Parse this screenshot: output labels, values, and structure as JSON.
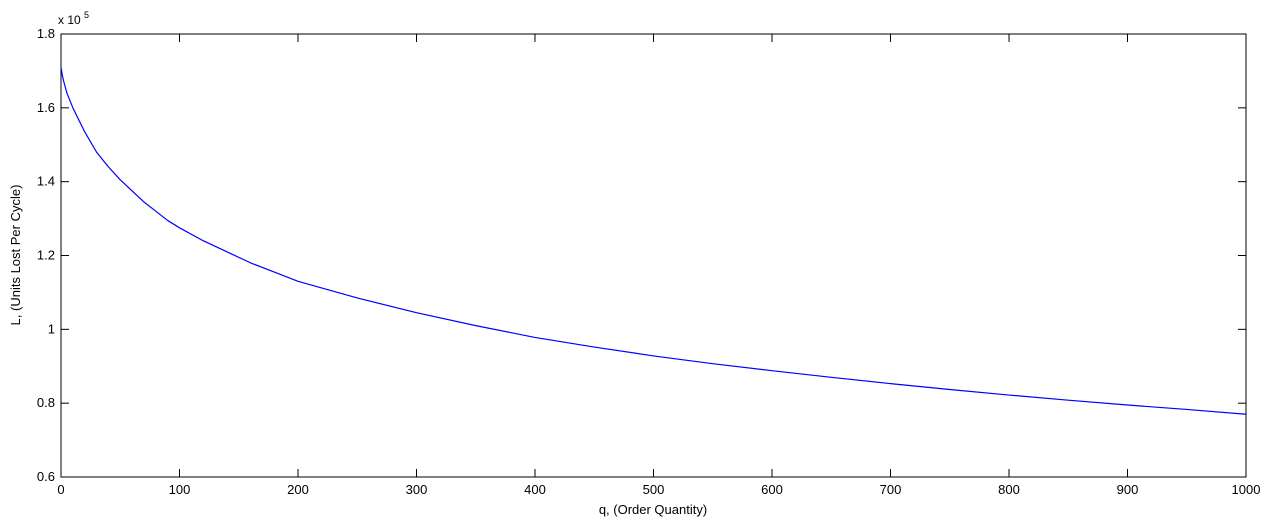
{
  "chart_data": {
    "type": "line",
    "title": "",
    "xlabel": "q, (Order Quantity)",
    "ylabel": "L, (Units Lost Per Cycle)",
    "y_exponent_prefix": "x 10",
    "y_exponent_power": "5",
    "xlim": [
      0,
      1000
    ],
    "ylim": [
      0.6,
      1.8
    ],
    "x_ticks": [
      0,
      100,
      200,
      300,
      400,
      500,
      600,
      700,
      800,
      900,
      1000
    ],
    "x_tick_labels": [
      "0",
      "100",
      "200",
      "300",
      "400",
      "500",
      "600",
      "700",
      "800",
      "900",
      "1000"
    ],
    "y_ticks": [
      0.6,
      0.8,
      1.0,
      1.2,
      1.4,
      1.6,
      1.8
    ],
    "y_tick_labels": [
      "0.6",
      "0.8",
      "1",
      "1.2",
      "1.4",
      "1.6",
      "1.8"
    ],
    "grid": false,
    "legend": "none",
    "line_color": "#0000ff",
    "series": [
      {
        "x": [
          0,
          1,
          2,
          5,
          10,
          20,
          30,
          40,
          50,
          60,
          70,
          80,
          90,
          100,
          120,
          140,
          160,
          180,
          200,
          250,
          300,
          350,
          400,
          450,
          500,
          550,
          600,
          650,
          700,
          750,
          800,
          850,
          900,
          950,
          1000
        ],
        "values": [
          1.71,
          1.69,
          1.675,
          1.64,
          1.6,
          1.535,
          1.48,
          1.44,
          1.405,
          1.375,
          1.345,
          1.32,
          1.295,
          1.275,
          1.24,
          1.21,
          1.18,
          1.155,
          1.13,
          1.085,
          1.045,
          1.01,
          0.978,
          0.952,
          0.928,
          0.907,
          0.888,
          0.87,
          0.853,
          0.837,
          0.822,
          0.808,
          0.795,
          0.783,
          0.77
        ]
      }
    ]
  }
}
